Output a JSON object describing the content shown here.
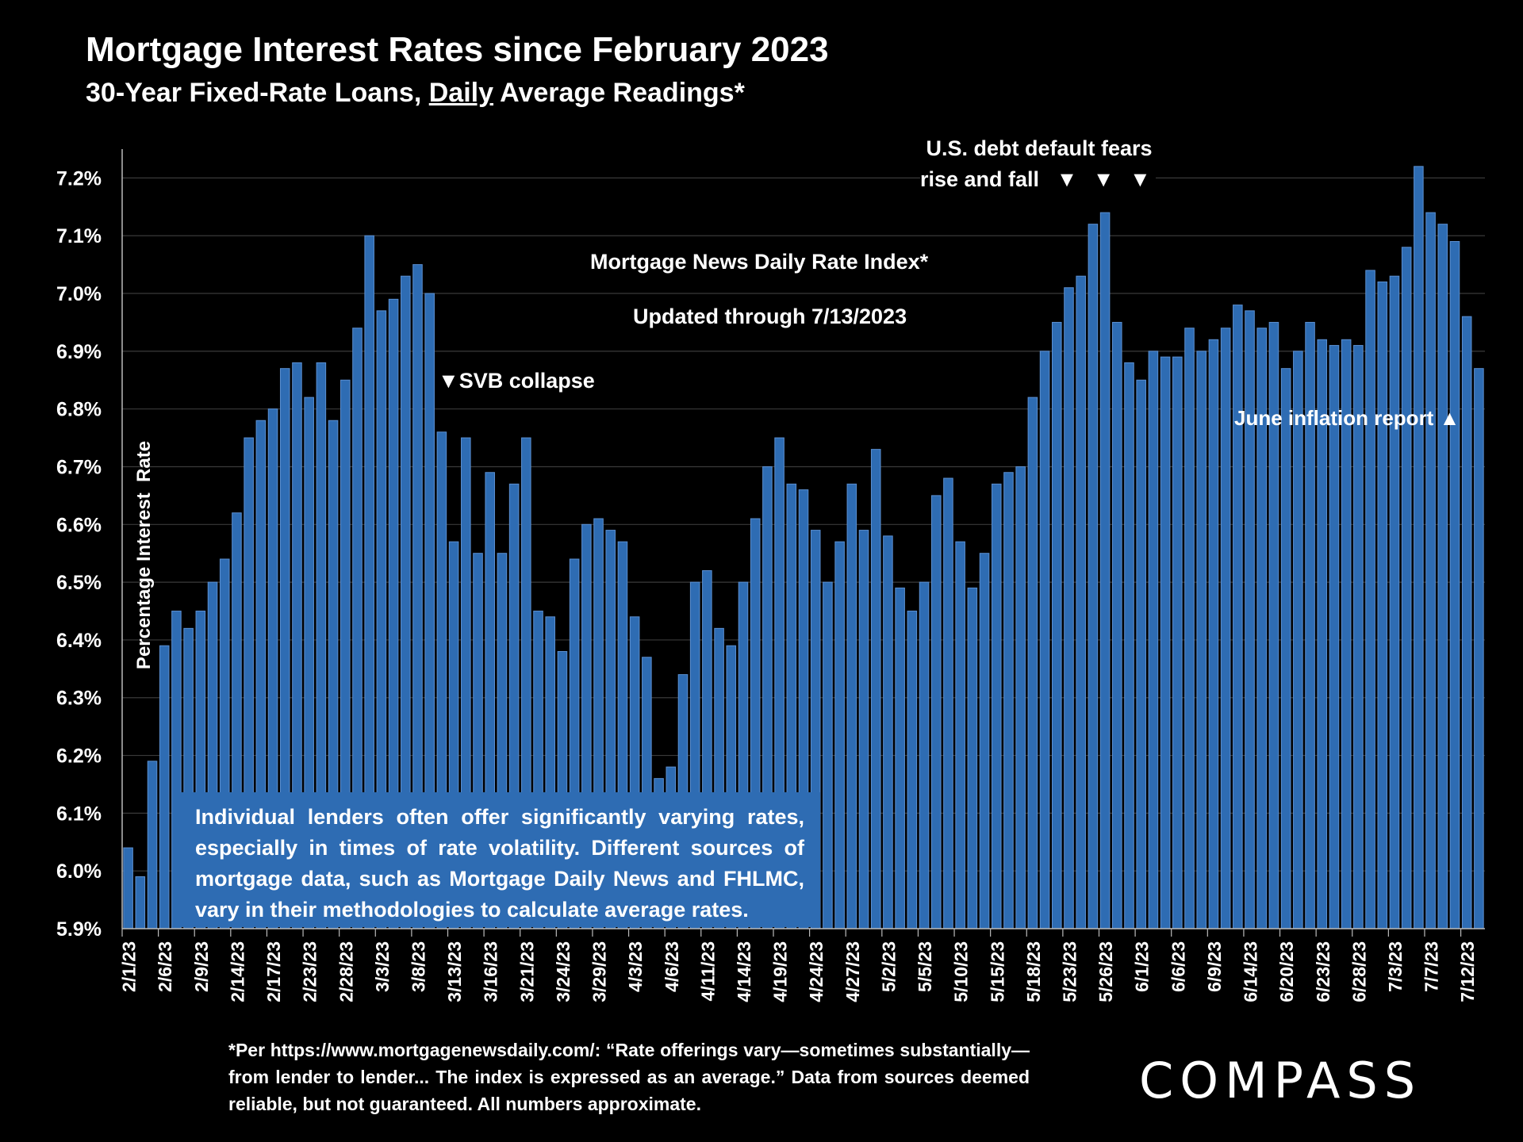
{
  "title": "Mortgage Interest Rates since February 2023",
  "subtitle_pre": "30-Year Fixed-Rate Loans, ",
  "subtitle_under": "Daily",
  "subtitle_post": " Average Readings*",
  "annotations": {
    "debt_line1": "U.S. debt default fears",
    "debt_line2": "rise and fall",
    "debt_arrows": "▼ ▼ ▼",
    "index_name": "Mortgage News Daily Rate Index*",
    "updated": "Updated through 7/13/2023",
    "svb": "▼SVB collapse",
    "inflation": "June inflation report ▲"
  },
  "note_box": "Individual lenders often offer significantly varying rates, especially in times of rate volatility. Different sources of mortgage data, such as Mortgage Daily News and FHLMC, vary in their methodologies to calculate average rates.",
  "footnote": "*Per https://www.mortgagenewsdaily.com/: “Rate offerings vary—sometimes substantially—from lender to lender... The index is expressed as an average.” Data from sources deemed reliable, but not guaranteed. All numbers approximate.",
  "logo": "COMPASS",
  "colors": {
    "bar": "#2E6CB3",
    "bar_edge": "#5B8FD0",
    "background": "#000000",
    "grid": "#3a3a3a"
  },
  "chart_data": {
    "type": "bar",
    "ylabel": "Percentage Interest  Rate",
    "ylim": [
      5.9,
      7.25
    ],
    "yticks": [
      "5.9%",
      "6.0%",
      "6.1%",
      "6.2%",
      "6.3%",
      "6.4%",
      "6.5%",
      "6.6%",
      "6.7%",
      "6.8%",
      "6.9%",
      "7.0%",
      "7.1%",
      "7.2%"
    ],
    "ytick_values": [
      5.9,
      6.0,
      6.1,
      6.2,
      6.3,
      6.4,
      6.5,
      6.6,
      6.7,
      6.8,
      6.9,
      7.0,
      7.1,
      7.2
    ],
    "grid": true,
    "xtick_labels": [
      {
        "index": 0,
        "label": "2/1/23"
      },
      {
        "index": 3,
        "label": "2/6/23"
      },
      {
        "index": 6,
        "label": "2/9/23"
      },
      {
        "index": 9,
        "label": "2/14/23"
      },
      {
        "index": 12,
        "label": "2/17/23"
      },
      {
        "index": 15,
        "label": "2/23/23"
      },
      {
        "index": 18,
        "label": "2/28/23"
      },
      {
        "index": 21,
        "label": "3/3/23"
      },
      {
        "index": 24,
        "label": "3/8/23"
      },
      {
        "index": 27,
        "label": "3/13/23"
      },
      {
        "index": 30,
        "label": "3/16/23"
      },
      {
        "index": 33,
        "label": "3/21/23"
      },
      {
        "index": 36,
        "label": "3/24/23"
      },
      {
        "index": 39,
        "label": "3/29/23"
      },
      {
        "index": 42,
        "label": "4/3/23"
      },
      {
        "index": 45,
        "label": "4/6/23"
      },
      {
        "index": 48,
        "label": "4/11/23"
      },
      {
        "index": 51,
        "label": "4/14/23"
      },
      {
        "index": 54,
        "label": "4/19/23"
      },
      {
        "index": 57,
        "label": "4/24/23"
      },
      {
        "index": 60,
        "label": "4/27/23"
      },
      {
        "index": 63,
        "label": "5/2/23"
      },
      {
        "index": 66,
        "label": "5/5/23"
      },
      {
        "index": 69,
        "label": "5/10/23"
      },
      {
        "index": 72,
        "label": "5/15/23"
      },
      {
        "index": 75,
        "label": "5/18/23"
      },
      {
        "index": 78,
        "label": "5/23/23"
      },
      {
        "index": 81,
        "label": "5/26/23"
      },
      {
        "index": 84,
        "label": "6/1/23"
      },
      {
        "index": 87,
        "label": "6/6/23"
      },
      {
        "index": 90,
        "label": "6/9/23"
      },
      {
        "index": 93,
        "label": "6/14/23"
      },
      {
        "index": 96,
        "label": "6/20/23"
      },
      {
        "index": 99,
        "label": "6/23/23"
      },
      {
        "index": 102,
        "label": "6/28/23"
      },
      {
        "index": 105,
        "label": "7/3/23"
      },
      {
        "index": 108,
        "label": "7/7/23"
      },
      {
        "index": 111,
        "label": "7/12/23"
      }
    ],
    "values": [
      6.04,
      5.99,
      6.19,
      6.39,
      6.45,
      6.42,
      6.45,
      6.5,
      6.54,
      6.62,
      6.75,
      6.78,
      6.8,
      6.87,
      6.88,
      6.82,
      6.88,
      6.78,
      6.85,
      6.94,
      7.1,
      6.97,
      6.99,
      7.03,
      7.05,
      7.0,
      6.76,
      6.57,
      6.75,
      6.55,
      6.69,
      6.55,
      6.67,
      6.75,
      6.45,
      6.44,
      6.38,
      6.54,
      6.6,
      6.61,
      6.59,
      6.57,
      6.44,
      6.37,
      6.16,
      6.18,
      6.34,
      6.5,
      6.52,
      6.42,
      6.39,
      6.5,
      6.61,
      6.7,
      6.75,
      6.67,
      6.66,
      6.59,
      6.5,
      6.57,
      6.67,
      6.59,
      6.73,
      6.58,
      6.49,
      6.45,
      6.5,
      6.65,
      6.68,
      6.57,
      6.49,
      6.55,
      6.67,
      6.69,
      6.7,
      6.82,
      6.9,
      6.95,
      7.01,
      7.03,
      7.12,
      7.14,
      6.95,
      6.88,
      6.85,
      6.9,
      6.89,
      6.89,
      6.94,
      6.9,
      6.92,
      6.94,
      6.98,
      6.97,
      6.94,
      6.95,
      6.87,
      6.9,
      6.95,
      6.92,
      6.91,
      6.92,
      6.91,
      7.04,
      7.02,
      7.03,
      7.08,
      7.22,
      7.14,
      7.12,
      7.09,
      6.96,
      6.87
    ]
  }
}
